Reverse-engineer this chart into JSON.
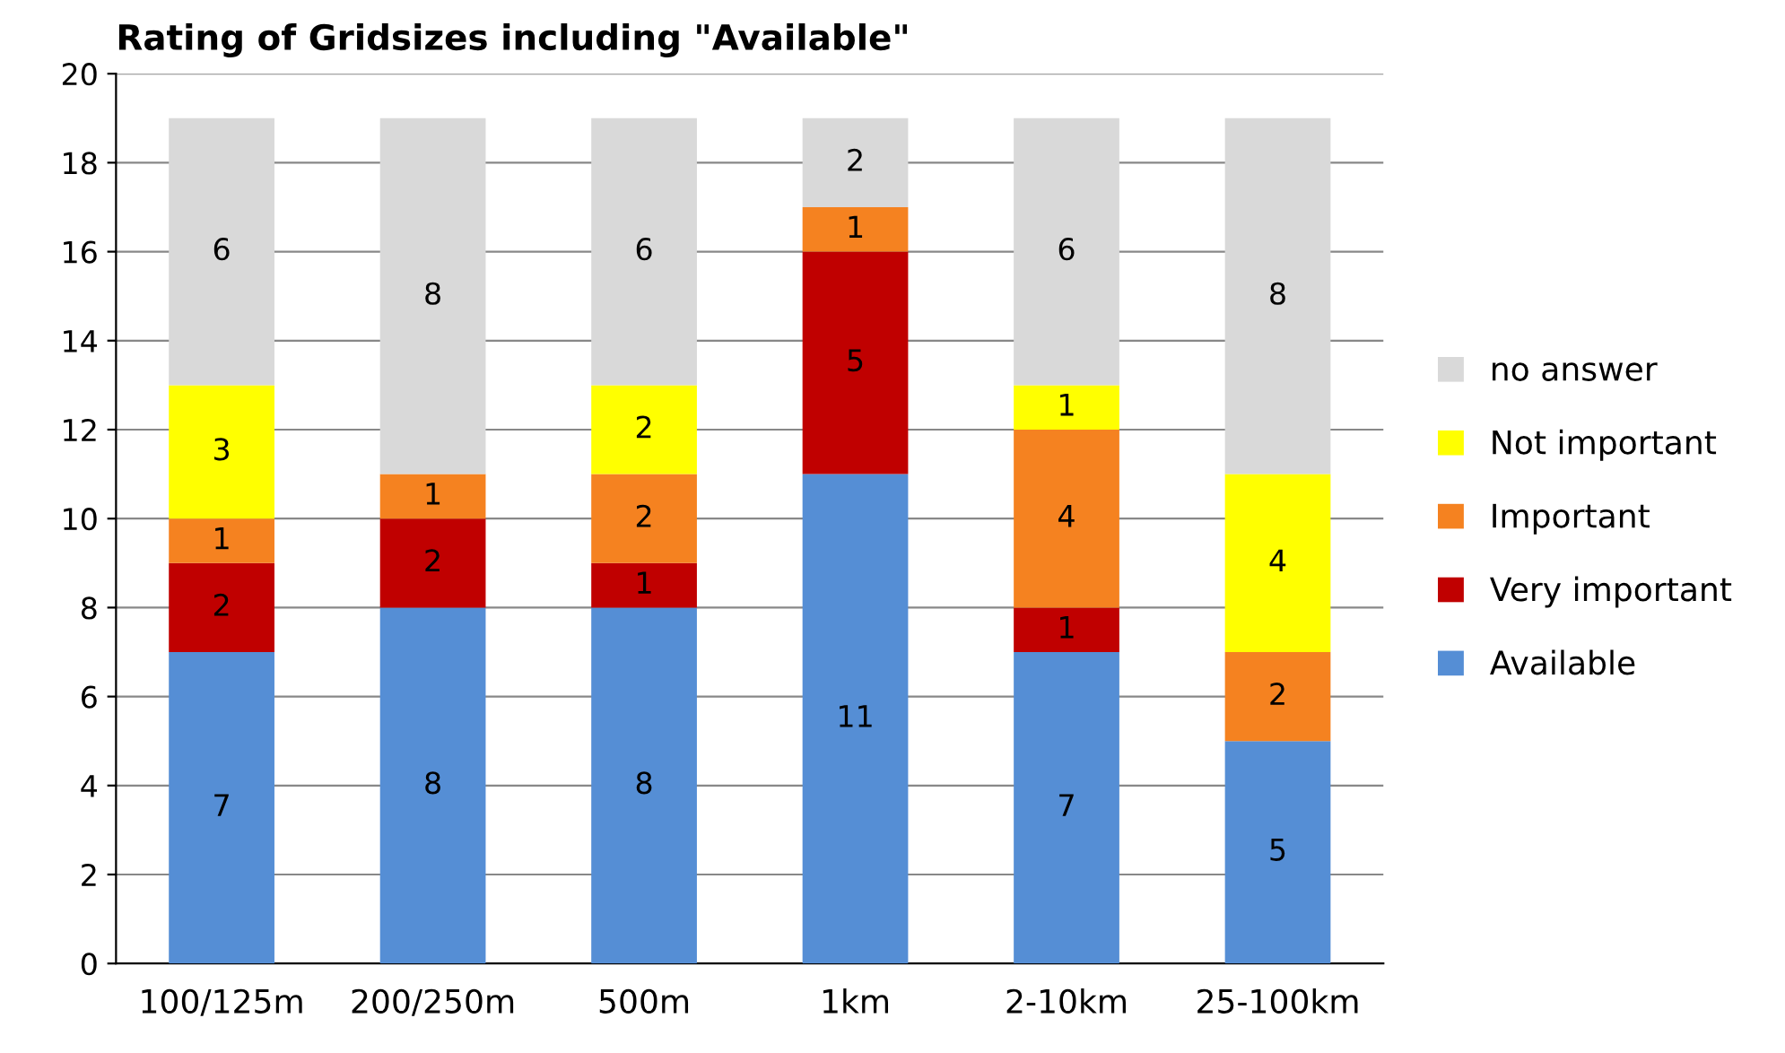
{
  "chart_data": {
    "type": "bar",
    "title": "Rating of Gridsizes including \"Available\"",
    "categories": [
      "100/125m",
      "200/250m",
      "500m",
      "1km",
      "2-10km",
      "25-100km"
    ],
    "stacked": true,
    "series": [
      {
        "name": "Available",
        "color": "#558ed5",
        "values": [
          7,
          8,
          8,
          11,
          7,
          5
        ]
      },
      {
        "name": "Very important",
        "color": "#c00000",
        "values": [
          2,
          2,
          1,
          5,
          1,
          null
        ]
      },
      {
        "name": "Important",
        "color": "#f58220",
        "values": [
          1,
          1,
          2,
          1,
          4,
          2
        ]
      },
      {
        "name": "Not important",
        "color": "#ffff00",
        "values": [
          3,
          null,
          2,
          null,
          1,
          4
        ]
      },
      {
        "name": "no answer",
        "color": "#d9d9d9",
        "values": [
          6,
          8,
          6,
          2,
          6,
          8
        ]
      }
    ],
    "ylim": [
      0,
      20
    ],
    "yticks": [
      0,
      2,
      4,
      6,
      8,
      10,
      12,
      14,
      16,
      18,
      20
    ],
    "grid": "y",
    "legend": "right",
    "data_labels": true
  }
}
